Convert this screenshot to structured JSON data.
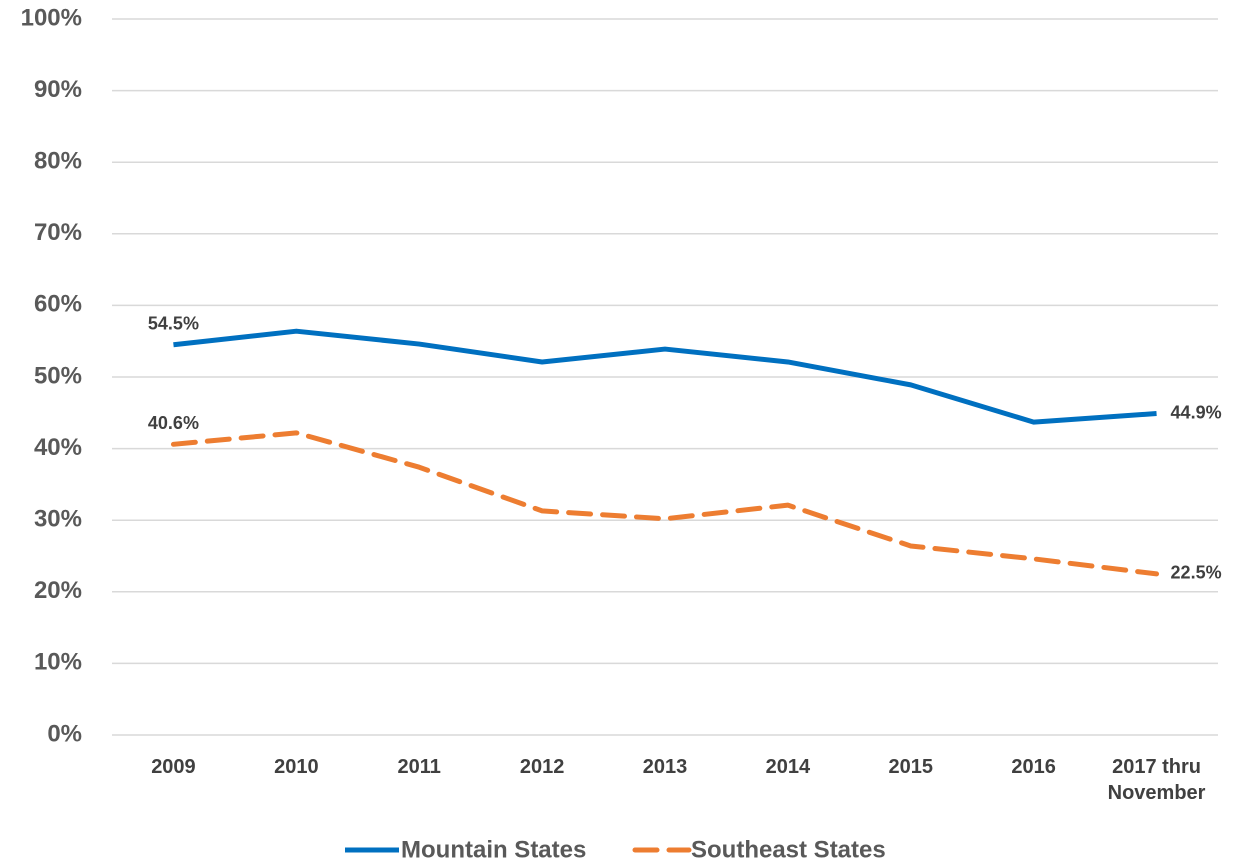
{
  "chart_data": {
    "type": "line",
    "categories": [
      "2009",
      "2010",
      "2011",
      "2012",
      "2013",
      "2014",
      "2015",
      "2016",
      "2017 thru November"
    ],
    "series": [
      {
        "name": "Mountain States",
        "color": "#0070c0",
        "dash": false,
        "values": [
          54.5,
          56.4,
          54.6,
          52.1,
          53.9,
          52.1,
          48.9,
          43.7,
          44.9
        ],
        "value_labels": [
          "54.5%",
          null,
          null,
          null,
          null,
          null,
          null,
          null,
          "44.9%"
        ]
      },
      {
        "name": "Southeast States",
        "color": "#ed7d31",
        "dash": true,
        "values": [
          40.6,
          42.2,
          37.4,
          31.3,
          30.2,
          32.1,
          26.4,
          24.6,
          22.5
        ],
        "value_labels": [
          "40.6%",
          null,
          null,
          null,
          null,
          null,
          null,
          null,
          "22.5%"
        ]
      }
    ],
    "ylim": [
      0,
      100
    ],
    "yticks": [
      {
        "value": 0,
        "label": "0%"
      },
      {
        "value": 10,
        "label": "10%"
      },
      {
        "value": 20,
        "label": "20%"
      },
      {
        "value": 30,
        "label": "30%"
      },
      {
        "value": 40,
        "label": "40%"
      },
      {
        "value": 50,
        "label": "50%"
      },
      {
        "value": 60,
        "label": "60%"
      },
      {
        "value": 70,
        "label": "70%"
      },
      {
        "value": 80,
        "label": "80%"
      },
      {
        "value": 90,
        "label": "90%"
      },
      {
        "value": 100,
        "label": "100%"
      }
    ],
    "grid": true,
    "legend": "bottom"
  }
}
